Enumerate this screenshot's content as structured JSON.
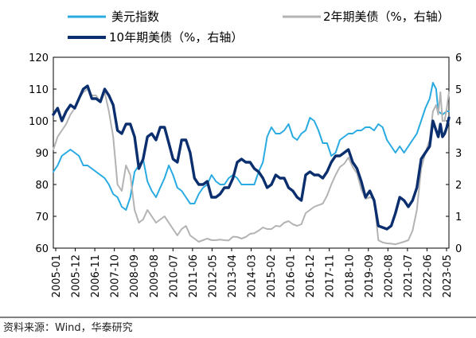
{
  "chart_data": {
    "type": "line",
    "legend": "top",
    "grid": false,
    "source": "资料来源：Wind，华泰研究",
    "x_ticks": [
      "2005-01",
      "2005-12",
      "2006-11",
      "2007-10",
      "2008-09",
      "2009-08",
      "2010-07",
      "2011-06",
      "2012-05",
      "2013-04",
      "2014-03",
      "2015-02",
      "2016-01",
      "2016-12",
      "2017-11",
      "2018-10",
      "2019-09",
      "2020-08",
      "2021-07",
      "2022-06",
      "2023-05"
    ],
    "left_axis": {
      "ylim": [
        60,
        120
      ],
      "ticks": [
        60,
        70,
        80,
        90,
        100,
        110,
        120
      ]
    },
    "right_axis": {
      "ylim": [
        0,
        6
      ],
      "ticks": [
        0,
        1,
        2,
        3,
        4,
        5,
        6
      ]
    },
    "series": [
      {
        "name": "美元指数",
        "axis": "left",
        "color": "#29abe2",
        "values": [
          [
            2005.0,
            84
          ],
          [
            2005.2,
            86
          ],
          [
            2005.4,
            89
          ],
          [
            2005.6,
            90
          ],
          [
            2005.8,
            91
          ],
          [
            2006.0,
            90
          ],
          [
            2006.2,
            89
          ],
          [
            2006.4,
            86
          ],
          [
            2006.6,
            86
          ],
          [
            2006.8,
            85
          ],
          [
            2007.0,
            84
          ],
          [
            2007.2,
            83
          ],
          [
            2007.4,
            82
          ],
          [
            2007.6,
            80
          ],
          [
            2007.8,
            77
          ],
          [
            2008.0,
            76
          ],
          [
            2008.2,
            73
          ],
          [
            2008.4,
            72
          ],
          [
            2008.6,
            76
          ],
          [
            2008.8,
            84
          ],
          [
            2009.0,
            86
          ],
          [
            2009.2,
            88
          ],
          [
            2009.4,
            81
          ],
          [
            2009.6,
            78
          ],
          [
            2009.8,
            76
          ],
          [
            2010.0,
            79
          ],
          [
            2010.2,
            82
          ],
          [
            2010.4,
            86
          ],
          [
            2010.6,
            83
          ],
          [
            2010.8,
            79
          ],
          [
            2011.0,
            78
          ],
          [
            2011.2,
            76
          ],
          [
            2011.4,
            74
          ],
          [
            2011.6,
            74
          ],
          [
            2011.8,
            77
          ],
          [
            2012.0,
            79
          ],
          [
            2012.2,
            80
          ],
          [
            2012.4,
            83
          ],
          [
            2012.6,
            81
          ],
          [
            2012.8,
            80
          ],
          [
            2013.0,
            80
          ],
          [
            2013.2,
            82
          ],
          [
            2013.4,
            83
          ],
          [
            2013.6,
            82
          ],
          [
            2013.8,
            80
          ],
          [
            2014.0,
            80
          ],
          [
            2014.2,
            80
          ],
          [
            2014.4,
            80
          ],
          [
            2014.6,
            84
          ],
          [
            2014.8,
            87
          ],
          [
            2015.0,
            95
          ],
          [
            2015.2,
            98
          ],
          [
            2015.4,
            96
          ],
          [
            2015.6,
            96
          ],
          [
            2015.8,
            97
          ],
          [
            2016.0,
            99
          ],
          [
            2016.2,
            95
          ],
          [
            2016.4,
            94
          ],
          [
            2016.6,
            96
          ],
          [
            2016.8,
            97
          ],
          [
            2017.0,
            101
          ],
          [
            2017.2,
            100
          ],
          [
            2017.4,
            97
          ],
          [
            2017.6,
            93
          ],
          [
            2017.8,
            93
          ],
          [
            2018.0,
            89
          ],
          [
            2018.2,
            90
          ],
          [
            2018.4,
            94
          ],
          [
            2018.6,
            95
          ],
          [
            2018.8,
            96
          ],
          [
            2019.0,
            96
          ],
          [
            2019.2,
            97
          ],
          [
            2019.4,
            97
          ],
          [
            2019.6,
            98
          ],
          [
            2019.8,
            98
          ],
          [
            2020.0,
            97
          ],
          [
            2020.2,
            99
          ],
          [
            2020.4,
            98
          ],
          [
            2020.6,
            94
          ],
          [
            2020.8,
            92
          ],
          [
            2021.0,
            90
          ],
          [
            2021.2,
            92
          ],
          [
            2021.4,
            90
          ],
          [
            2021.6,
            92
          ],
          [
            2021.8,
            94
          ],
          [
            2022.0,
            96
          ],
          [
            2022.2,
            100
          ],
          [
            2022.4,
            104
          ],
          [
            2022.6,
            107
          ],
          [
            2022.75,
            112
          ],
          [
            2022.9,
            110
          ],
          [
            2023.0,
            103
          ],
          [
            2023.2,
            102
          ],
          [
            2023.4,
            103
          ],
          [
            2023.5,
            103
          ]
        ]
      },
      {
        "name": "2年期美债（%，右轴）",
        "axis": "right",
        "color": "#b3b3b3",
        "values": [
          [
            2005.0,
            3.1
          ],
          [
            2005.2,
            3.5
          ],
          [
            2005.4,
            3.7
          ],
          [
            2005.6,
            3.9
          ],
          [
            2005.8,
            4.2
          ],
          [
            2006.0,
            4.4
          ],
          [
            2006.2,
            4.7
          ],
          [
            2006.4,
            4.9
          ],
          [
            2006.6,
            5.0
          ],
          [
            2006.8,
            4.8
          ],
          [
            2007.0,
            4.8
          ],
          [
            2007.2,
            4.6
          ],
          [
            2007.4,
            4.9
          ],
          [
            2007.6,
            4.3
          ],
          [
            2007.8,
            3.5
          ],
          [
            2008.0,
            2.0
          ],
          [
            2008.2,
            1.8
          ],
          [
            2008.4,
            2.6
          ],
          [
            2008.6,
            2.3
          ],
          [
            2008.8,
            1.2
          ],
          [
            2009.0,
            0.8
          ],
          [
            2009.2,
            0.9
          ],
          [
            2009.4,
            1.2
          ],
          [
            2009.6,
            1.0
          ],
          [
            2009.8,
            0.8
          ],
          [
            2010.0,
            0.9
          ],
          [
            2010.2,
            1.0
          ],
          [
            2010.4,
            0.8
          ],
          [
            2010.6,
            0.6
          ],
          [
            2010.8,
            0.4
          ],
          [
            2011.0,
            0.6
          ],
          [
            2011.2,
            0.7
          ],
          [
            2011.4,
            0.4
          ],
          [
            2011.6,
            0.3
          ],
          [
            2011.8,
            0.2
          ],
          [
            2012.0,
            0.25
          ],
          [
            2012.2,
            0.3
          ],
          [
            2012.4,
            0.25
          ],
          [
            2012.6,
            0.25
          ],
          [
            2012.8,
            0.27
          ],
          [
            2013.0,
            0.25
          ],
          [
            2013.2,
            0.24
          ],
          [
            2013.4,
            0.36
          ],
          [
            2013.6,
            0.35
          ],
          [
            2013.8,
            0.3
          ],
          [
            2014.0,
            0.35
          ],
          [
            2014.2,
            0.45
          ],
          [
            2014.4,
            0.47
          ],
          [
            2014.6,
            0.55
          ],
          [
            2014.8,
            0.65
          ],
          [
            2015.0,
            0.6
          ],
          [
            2015.2,
            0.6
          ],
          [
            2015.4,
            0.7
          ],
          [
            2015.6,
            0.68
          ],
          [
            2015.8,
            0.8
          ],
          [
            2016.0,
            0.85
          ],
          [
            2016.2,
            0.75
          ],
          [
            2016.4,
            0.7
          ],
          [
            2016.6,
            0.75
          ],
          [
            2016.8,
            1.1
          ],
          [
            2017.0,
            1.2
          ],
          [
            2017.2,
            1.3
          ],
          [
            2017.4,
            1.35
          ],
          [
            2017.6,
            1.4
          ],
          [
            2017.8,
            1.65
          ],
          [
            2018.0,
            2.0
          ],
          [
            2018.2,
            2.3
          ],
          [
            2018.4,
            2.55
          ],
          [
            2018.6,
            2.65
          ],
          [
            2018.8,
            2.85
          ],
          [
            2019.0,
            2.55
          ],
          [
            2019.2,
            2.35
          ],
          [
            2019.4,
            1.85
          ],
          [
            2019.6,
            1.55
          ],
          [
            2019.8,
            1.6
          ],
          [
            2020.0,
            1.55
          ],
          [
            2020.2,
            0.25
          ],
          [
            2020.4,
            0.18
          ],
          [
            2020.6,
            0.15
          ],
          [
            2020.8,
            0.14
          ],
          [
            2021.0,
            0.12
          ],
          [
            2021.2,
            0.16
          ],
          [
            2021.4,
            0.2
          ],
          [
            2021.6,
            0.25
          ],
          [
            2021.8,
            0.55
          ],
          [
            2022.0,
            1.2
          ],
          [
            2022.2,
            2.5
          ],
          [
            2022.4,
            3.0
          ],
          [
            2022.6,
            3.4
          ],
          [
            2022.75,
            4.3
          ],
          [
            2022.9,
            4.5
          ],
          [
            2023.0,
            4.2
          ],
          [
            2023.1,
            4.9
          ],
          [
            2023.2,
            4.0
          ],
          [
            2023.3,
            4.0
          ],
          [
            2023.4,
            4.4
          ],
          [
            2023.5,
            4.9
          ]
        ]
      },
      {
        "name": "10年期美债（%，右轴）",
        "axis": "right",
        "color": "#0b2f6e",
        "values": [
          [
            2005.0,
            4.2
          ],
          [
            2005.2,
            4.4
          ],
          [
            2005.4,
            4.0
          ],
          [
            2005.6,
            4.3
          ],
          [
            2005.8,
            4.5
          ],
          [
            2006.0,
            4.4
          ],
          [
            2006.2,
            4.7
          ],
          [
            2006.4,
            5.0
          ],
          [
            2006.6,
            5.1
          ],
          [
            2006.8,
            4.7
          ],
          [
            2007.0,
            4.7
          ],
          [
            2007.2,
            4.6
          ],
          [
            2007.4,
            5.0
          ],
          [
            2007.6,
            4.8
          ],
          [
            2007.8,
            4.5
          ],
          [
            2008.0,
            3.7
          ],
          [
            2008.2,
            3.6
          ],
          [
            2008.4,
            3.9
          ],
          [
            2008.6,
            3.9
          ],
          [
            2008.8,
            3.5
          ],
          [
            2009.0,
            2.5
          ],
          [
            2009.2,
            2.8
          ],
          [
            2009.4,
            3.5
          ],
          [
            2009.6,
            3.6
          ],
          [
            2009.8,
            3.4
          ],
          [
            2010.0,
            3.8
          ],
          [
            2010.2,
            3.8
          ],
          [
            2010.4,
            3.3
          ],
          [
            2010.6,
            2.8
          ],
          [
            2010.8,
            2.7
          ],
          [
            2011.0,
            3.4
          ],
          [
            2011.2,
            3.4
          ],
          [
            2011.4,
            3.0
          ],
          [
            2011.6,
            2.2
          ],
          [
            2011.8,
            2.0
          ],
          [
            2012.0,
            2.0
          ],
          [
            2012.2,
            2.1
          ],
          [
            2012.4,
            1.6
          ],
          [
            2012.6,
            1.6
          ],
          [
            2012.8,
            1.7
          ],
          [
            2013.0,
            1.9
          ],
          [
            2013.2,
            1.9
          ],
          [
            2013.4,
            2.2
          ],
          [
            2013.6,
            2.7
          ],
          [
            2013.8,
            2.8
          ],
          [
            2014.0,
            2.7
          ],
          [
            2014.2,
            2.7
          ],
          [
            2014.4,
            2.5
          ],
          [
            2014.6,
            2.4
          ],
          [
            2014.8,
            2.2
          ],
          [
            2015.0,
            1.9
          ],
          [
            2015.2,
            2.0
          ],
          [
            2015.4,
            2.3
          ],
          [
            2015.6,
            2.2
          ],
          [
            2015.8,
            2.2
          ],
          [
            2016.0,
            1.9
          ],
          [
            2016.2,
            1.8
          ],
          [
            2016.4,
            1.6
          ],
          [
            2016.6,
            1.5
          ],
          [
            2016.8,
            2.3
          ],
          [
            2017.0,
            2.4
          ],
          [
            2017.2,
            2.3
          ],
          [
            2017.4,
            2.3
          ],
          [
            2017.6,
            2.2
          ],
          [
            2017.8,
            2.4
          ],
          [
            2018.0,
            2.7
          ],
          [
            2018.2,
            2.9
          ],
          [
            2018.4,
            2.9
          ],
          [
            2018.6,
            3.0
          ],
          [
            2018.8,
            3.1
          ],
          [
            2019.0,
            2.7
          ],
          [
            2019.2,
            2.5
          ],
          [
            2019.4,
            2.1
          ],
          [
            2019.6,
            1.6
          ],
          [
            2019.8,
            1.8
          ],
          [
            2020.0,
            1.5
          ],
          [
            2020.2,
            0.7
          ],
          [
            2020.4,
            0.65
          ],
          [
            2020.6,
            0.6
          ],
          [
            2020.8,
            0.7
          ],
          [
            2021.0,
            1.1
          ],
          [
            2021.2,
            1.6
          ],
          [
            2021.4,
            1.5
          ],
          [
            2021.6,
            1.3
          ],
          [
            2021.8,
            1.5
          ],
          [
            2022.0,
            1.9
          ],
          [
            2022.2,
            2.8
          ],
          [
            2022.4,
            3.0
          ],
          [
            2022.6,
            3.2
          ],
          [
            2022.75,
            4.0
          ],
          [
            2022.9,
            3.7
          ],
          [
            2023.0,
            3.5
          ],
          [
            2023.1,
            3.9
          ],
          [
            2023.2,
            3.5
          ],
          [
            2023.3,
            3.6
          ],
          [
            2023.4,
            3.8
          ],
          [
            2023.5,
            4.1
          ]
        ]
      }
    ]
  }
}
